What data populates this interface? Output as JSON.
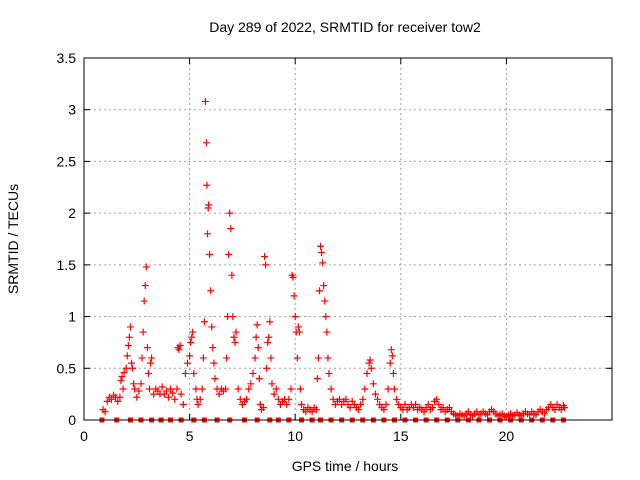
{
  "chart_data": {
    "type": "scatter",
    "title": "Day 289 of 2022, SRMTID for receiver tow2",
    "xlabel": "GPS time / hours",
    "ylabel": "SRMTID / TECUs",
    "xlim": [
      0,
      25
    ],
    "ylim": [
      0,
      3.5
    ],
    "x_ticks": [
      0,
      5,
      10,
      15,
      20
    ],
    "x_tick_labels": [
      "0",
      "5",
      "10",
      "15",
      "20"
    ],
    "y_ticks": [
      0,
      0.5,
      1,
      1.5,
      2,
      2.5,
      3,
      3.5
    ],
    "y_tick_labels": [
      "0",
      "0.5",
      "1",
      "1.5",
      "2",
      "2.5",
      "3",
      "3.5"
    ],
    "grid": true,
    "marker": "+",
    "color": "#ff0000",
    "series": [
      {
        "name": "SRMTID",
        "points": [
          [
            0.9,
            0.1
          ],
          [
            1.0,
            0.08
          ],
          [
            1.1,
            0.18
          ],
          [
            1.2,
            0.22
          ],
          [
            1.3,
            0.2
          ],
          [
            1.4,
            0.24
          ],
          [
            1.5,
            0.22
          ],
          [
            1.6,
            0.18
          ],
          [
            1.7,
            0.22
          ],
          [
            1.75,
            0.38
          ],
          [
            1.8,
            0.42
          ],
          [
            1.85,
            0.3
          ],
          [
            1.9,
            0.46
          ],
          [
            2.0,
            0.5
          ],
          [
            2.05,
            0.62
          ],
          [
            2.1,
            0.72
          ],
          [
            2.15,
            0.8
          ],
          [
            2.2,
            0.9
          ],
          [
            2.25,
            0.55
          ],
          [
            2.3,
            0.5
          ],
          [
            2.35,
            0.35
          ],
          [
            2.4,
            0.3
          ],
          [
            2.5,
            0.22
          ],
          [
            2.6,
            0.28
          ],
          [
            2.7,
            0.35
          ],
          [
            2.75,
            0.6
          ],
          [
            2.8,
            0.85
          ],
          [
            2.85,
            1.15
          ],
          [
            2.9,
            1.3
          ],
          [
            2.95,
            1.48
          ],
          [
            3.0,
            0.7
          ],
          [
            3.05,
            0.45
          ],
          [
            3.1,
            0.3
          ],
          [
            3.15,
            0.55
          ],
          [
            3.2,
            0.6
          ],
          [
            3.3,
            0.25
          ],
          [
            3.4,
            0.3
          ],
          [
            3.5,
            0.28
          ],
          [
            3.6,
            0.25
          ],
          [
            3.7,
            0.32
          ],
          [
            3.8,
            0.25
          ],
          [
            3.9,
            0.28
          ],
          [
            4.0,
            0.22
          ],
          [
            4.1,
            0.3
          ],
          [
            4.2,
            0.26
          ],
          [
            4.3,
            0.2
          ],
          [
            4.4,
            0.3
          ],
          [
            4.45,
            0.7
          ],
          [
            4.5,
            0.68
          ],
          [
            4.55,
            0.72
          ],
          [
            4.6,
            0.25
          ],
          [
            4.7,
            0.15
          ],
          [
            4.8,
            0.45
          ],
          [
            4.9,
            0.55
          ],
          [
            5.0,
            0.62
          ],
          [
            5.05,
            0.75
          ],
          [
            5.1,
            0.8
          ],
          [
            5.15,
            0.85
          ],
          [
            5.2,
            0.45
          ],
          [
            5.3,
            0.3
          ],
          [
            5.35,
            0.2
          ],
          [
            5.4,
            0.15
          ],
          [
            5.5,
            0.2
          ],
          [
            5.6,
            0.3
          ],
          [
            5.65,
            0.6
          ],
          [
            5.7,
            0.95
          ],
          [
            5.75,
            3.08
          ],
          [
            5.8,
            2.68
          ],
          [
            5.82,
            2.27
          ],
          [
            5.85,
            1.8
          ],
          [
            5.88,
            2.05
          ],
          [
            5.9,
            2.08
          ],
          [
            5.95,
            1.6
          ],
          [
            6.0,
            1.25
          ],
          [
            6.05,
            0.9
          ],
          [
            6.1,
            0.7
          ],
          [
            6.15,
            0.55
          ],
          [
            6.2,
            0.4
          ],
          [
            6.3,
            0.3
          ],
          [
            6.4,
            0.25
          ],
          [
            6.5,
            0.3
          ],
          [
            6.6,
            0.28
          ],
          [
            6.7,
            0.3
          ],
          [
            6.75,
            0.6
          ],
          [
            6.8,
            1.0
          ],
          [
            6.85,
            1.6
          ],
          [
            6.9,
            2.0
          ],
          [
            6.95,
            1.85
          ],
          [
            7.0,
            1.4
          ],
          [
            7.05,
            1.0
          ],
          [
            7.1,
            0.8
          ],
          [
            7.15,
            0.75
          ],
          [
            7.2,
            0.85
          ],
          [
            7.3,
            0.3
          ],
          [
            7.4,
            0.2
          ],
          [
            7.5,
            0.15
          ],
          [
            7.6,
            0.18
          ],
          [
            7.7,
            0.2
          ],
          [
            7.8,
            0.3
          ],
          [
            7.9,
            0.35
          ],
          [
            8.0,
            0.45
          ],
          [
            8.1,
            0.6
          ],
          [
            8.15,
            0.8
          ],
          [
            8.2,
            0.92
          ],
          [
            8.25,
            0.7
          ],
          [
            8.3,
            0.4
          ],
          [
            8.35,
            0.15
          ],
          [
            8.4,
            0.1
          ],
          [
            8.5,
            0.12
          ],
          [
            8.55,
            1.58
          ],
          [
            8.6,
            1.5
          ],
          [
            8.65,
            0.5
          ],
          [
            8.7,
            0.75
          ],
          [
            8.75,
            0.8
          ],
          [
            8.8,
            0.95
          ],
          [
            8.85,
            0.6
          ],
          [
            8.9,
            0.35
          ],
          [
            9.0,
            0.25
          ],
          [
            9.1,
            0.3
          ],
          [
            9.2,
            0.2
          ],
          [
            9.3,
            0.15
          ],
          [
            9.4,
            0.18
          ],
          [
            9.5,
            0.2
          ],
          [
            9.6,
            0.15
          ],
          [
            9.7,
            0.2
          ],
          [
            9.8,
            0.3
          ],
          [
            9.85,
            1.4
          ],
          [
            9.9,
            1.38
          ],
          [
            9.95,
            1.2
          ],
          [
            10.0,
            1.0
          ],
          [
            10.05,
            0.85
          ],
          [
            10.1,
            0.6
          ],
          [
            10.15,
            0.9
          ],
          [
            10.2,
            0.85
          ],
          [
            10.25,
            0.3
          ],
          [
            10.3,
            0.15
          ],
          [
            10.4,
            0.1
          ],
          [
            10.5,
            0.08
          ],
          [
            10.6,
            0.12
          ],
          [
            10.7,
            0.1
          ],
          [
            10.8,
            0.08
          ],
          [
            10.9,
            0.12
          ],
          [
            11.0,
            0.1
          ],
          [
            11.05,
            0.4
          ],
          [
            11.1,
            0.6
          ],
          [
            11.15,
            1.25
          ],
          [
            11.2,
            1.68
          ],
          [
            11.25,
            1.62
          ],
          [
            11.3,
            1.52
          ],
          [
            11.35,
            1.3
          ],
          [
            11.4,
            1.15
          ],
          [
            11.45,
            1.0
          ],
          [
            11.5,
            0.85
          ],
          [
            11.55,
            0.6
          ],
          [
            11.6,
            0.45
          ],
          [
            11.7,
            0.3
          ],
          [
            11.8,
            0.2
          ],
          [
            11.9,
            0.15
          ],
          [
            12.0,
            0.18
          ],
          [
            12.1,
            0.2
          ],
          [
            12.2,
            0.15
          ],
          [
            12.3,
            0.18
          ],
          [
            12.4,
            0.2
          ],
          [
            12.5,
            0.15
          ],
          [
            12.6,
            0.12
          ],
          [
            12.7,
            0.18
          ],
          [
            12.8,
            0.15
          ],
          [
            12.9,
            0.12
          ],
          [
            13.0,
            0.1
          ],
          [
            13.1,
            0.15
          ],
          [
            13.2,
            0.2
          ],
          [
            13.3,
            0.3
          ],
          [
            13.4,
            0.45
          ],
          [
            13.5,
            0.55
          ],
          [
            13.55,
            0.58
          ],
          [
            13.6,
            0.5
          ],
          [
            13.7,
            0.35
          ],
          [
            13.8,
            0.25
          ],
          [
            13.9,
            0.2
          ],
          [
            14.0,
            0.15
          ],
          [
            14.1,
            0.12
          ],
          [
            14.2,
            0.1
          ],
          [
            14.3,
            0.15
          ],
          [
            14.4,
            0.3
          ],
          [
            14.5,
            0.55
          ],
          [
            14.55,
            0.68
          ],
          [
            14.6,
            0.62
          ],
          [
            14.65,
            0.45
          ],
          [
            14.7,
            0.3
          ],
          [
            14.8,
            0.2
          ],
          [
            14.9,
            0.15
          ],
          [
            15.0,
            0.12
          ],
          [
            15.1,
            0.1
          ],
          [
            15.2,
            0.15
          ],
          [
            15.3,
            0.1
          ],
          [
            15.4,
            0.12
          ],
          [
            15.5,
            0.15
          ],
          [
            15.6,
            0.12
          ],
          [
            15.7,
            0.15
          ],
          [
            15.8,
            0.1
          ],
          [
            15.9,
            0.12
          ],
          [
            16.0,
            0.1
          ],
          [
            16.1,
            0.08
          ],
          [
            16.2,
            0.12
          ],
          [
            16.3,
            0.15
          ],
          [
            16.4,
            0.1
          ],
          [
            16.5,
            0.12
          ],
          [
            16.6,
            0.18
          ],
          [
            16.7,
            0.2
          ],
          [
            16.8,
            0.15
          ],
          [
            16.9,
            0.1
          ],
          [
            17.0,
            0.12
          ],
          [
            17.1,
            0.08
          ],
          [
            17.2,
            0.1
          ],
          [
            17.3,
            0.12
          ],
          [
            17.4,
            0.08
          ],
          [
            17.5,
            0.06
          ],
          [
            17.6,
            0.05
          ],
          [
            17.7,
            0.04
          ],
          [
            17.8,
            0.06
          ],
          [
            17.9,
            0.05
          ],
          [
            18.0,
            0.04
          ],
          [
            18.1,
            0.06
          ],
          [
            18.2,
            0.08
          ],
          [
            18.3,
            0.05
          ],
          [
            18.4,
            0.04
          ],
          [
            18.5,
            0.06
          ],
          [
            18.6,
            0.08
          ],
          [
            18.7,
            0.05
          ],
          [
            18.8,
            0.06
          ],
          [
            18.9,
            0.08
          ],
          [
            19.0,
            0.06
          ],
          [
            19.1,
            0.05
          ],
          [
            19.2,
            0.08
          ],
          [
            19.3,
            0.1
          ],
          [
            19.4,
            0.08
          ],
          [
            19.5,
            0.06
          ],
          [
            19.6,
            0.04
          ],
          [
            19.7,
            0.05
          ],
          [
            19.8,
            0.06
          ],
          [
            19.9,
            0.04
          ],
          [
            20.0,
            0.03
          ],
          [
            20.1,
            0.05
          ],
          [
            20.2,
            0.06
          ],
          [
            20.3,
            0.04
          ],
          [
            20.4,
            0.05
          ],
          [
            20.5,
            0.07
          ],
          [
            20.6,
            0.05
          ],
          [
            20.7,
            0.04
          ],
          [
            20.8,
            0.06
          ],
          [
            20.9,
            0.08
          ],
          [
            21.0,
            0.06
          ],
          [
            21.1,
            0.05
          ],
          [
            21.2,
            0.08
          ],
          [
            21.3,
            0.06
          ],
          [
            21.4,
            0.05
          ],
          [
            21.5,
            0.08
          ],
          [
            21.6,
            0.1
          ],
          [
            21.7,
            0.08
          ],
          [
            21.8,
            0.06
          ],
          [
            21.9,
            0.1
          ],
          [
            22.0,
            0.12
          ],
          [
            22.1,
            0.15
          ],
          [
            22.2,
            0.12
          ],
          [
            22.3,
            0.1
          ],
          [
            22.4,
            0.15
          ],
          [
            22.5,
            0.12
          ],
          [
            22.6,
            0.1
          ],
          [
            22.7,
            0.14
          ],
          [
            22.75,
            0.12
          ]
        ]
      }
    ],
    "zero_markers_x": [
      0.85,
      1.55,
      2.2,
      2.7,
      3.2,
      3.65,
      4.1,
      4.6,
      5.2,
      5.7,
      6.3,
      6.9,
      7.6,
      8.2,
      8.8,
      9.2,
      9.7,
      10.3,
      10.8,
      11.2,
      11.7,
      12.2,
      12.7,
      13.2,
      13.7,
      14.2,
      14.7,
      15.2,
      15.7,
      16.2,
      16.7,
      17.2,
      17.7,
      18.2,
      18.7,
      19.2,
      19.7,
      20.2,
      20.7,
      21.2,
      21.7,
      22.2,
      22.7
    ]
  }
}
